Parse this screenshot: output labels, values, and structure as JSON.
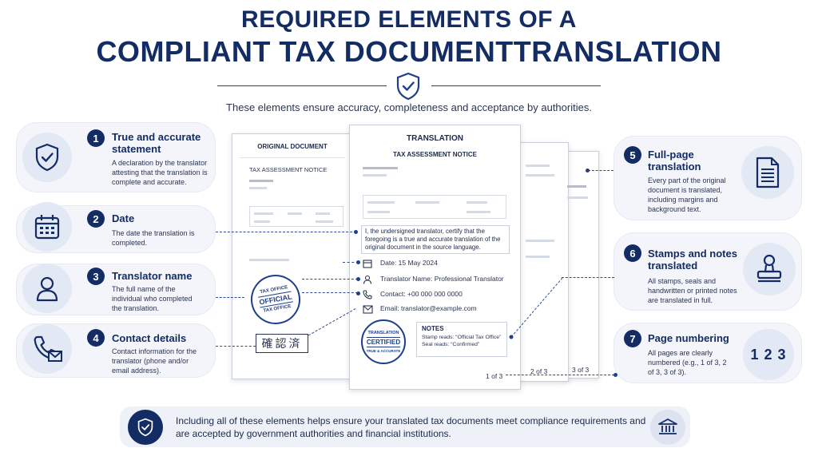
{
  "header": {
    "title_line1": "REQUIRED ELEMENTS OF A",
    "title_line2": "COMPLIANT TAX DOCUMENTTRANSLATION",
    "subtitle": "These elements ensure accuracy, completeness and acceptance by authorities."
  },
  "elements": [
    {
      "num": "1",
      "title": "True and accurate statement",
      "desc": "A declaration by the translator attesting that the translation is complete and accurate.",
      "icon": "shield-check-icon"
    },
    {
      "num": "2",
      "title": "Date",
      "desc": "The date the translation is completed.",
      "icon": "calendar-icon"
    },
    {
      "num": "3",
      "title": "Translator name",
      "desc": "The full name of the individual who completed the translation.",
      "icon": "person-icon"
    },
    {
      "num": "4",
      "title": "Contact details",
      "desc": "Contact information for the translator (phone and/or email address).",
      "icon": "phone-mail-icon"
    },
    {
      "num": "5",
      "title": "Full-page translation",
      "desc": "Every part of the original document is translated, including margins and background text.",
      "icon": "document-icon"
    },
    {
      "num": "6",
      "title": "Stamps and notes translated",
      "desc": "All stamps, seals and handwritten or printed notes are translated in full.",
      "icon": "stamp-icon"
    },
    {
      "num": "7",
      "title": "Page numbering",
      "desc": "All pages are clearly numbered (e.g., 1 of 3, 2 of 3, 3 of 3).",
      "icon": "123-icon",
      "icon_text": "1 2 3"
    }
  ],
  "original_doc": {
    "label": "ORIGINAL DOCUMENT",
    "heading": "TAX ASSESSMENT NOTICE",
    "stamp_top": "TAX OFFICE",
    "stamp_mid": "OFFICIAL",
    "stamp_bottom": "TAX OFFICE",
    "seal_text": "確認済"
  },
  "translation_doc": {
    "label": "TRANSLATION",
    "heading": "TAX ASSESSMENT NOTICE",
    "statement": "I, the undersigned translator, certify that the foregoing is a true and accurate translation of the original document in the source language.",
    "date": "Date: 15 May 2024",
    "name": "Translator Name: Professional Translator",
    "contact": "Contact: +00 000 000 0000",
    "email": "Email: translator@example.com",
    "stamp_top": "TRANSLATION",
    "stamp_mid": "CERTIFIED",
    "stamp_bottom": "TRUE & ACCURATE",
    "notes_title": "NOTES",
    "note1": "Stamp reads: “Official Tax Office”",
    "note2": "Seal reads: “Confirmed”",
    "page1": "1 of 3",
    "page2": "2 of 3",
    "page3": "3 of 3"
  },
  "footer": {
    "text": "Including all of these elements helps ensure your translated tax documents meet compliance requirements and are accepted by government authorities and financial institutions.",
    "left_icon": "shield-check-icon",
    "right_icon": "bank-icon"
  },
  "colors": {
    "navy": "#132c64",
    "accent": "#1f3f8a",
    "card_bg": "#f3f5fa"
  }
}
